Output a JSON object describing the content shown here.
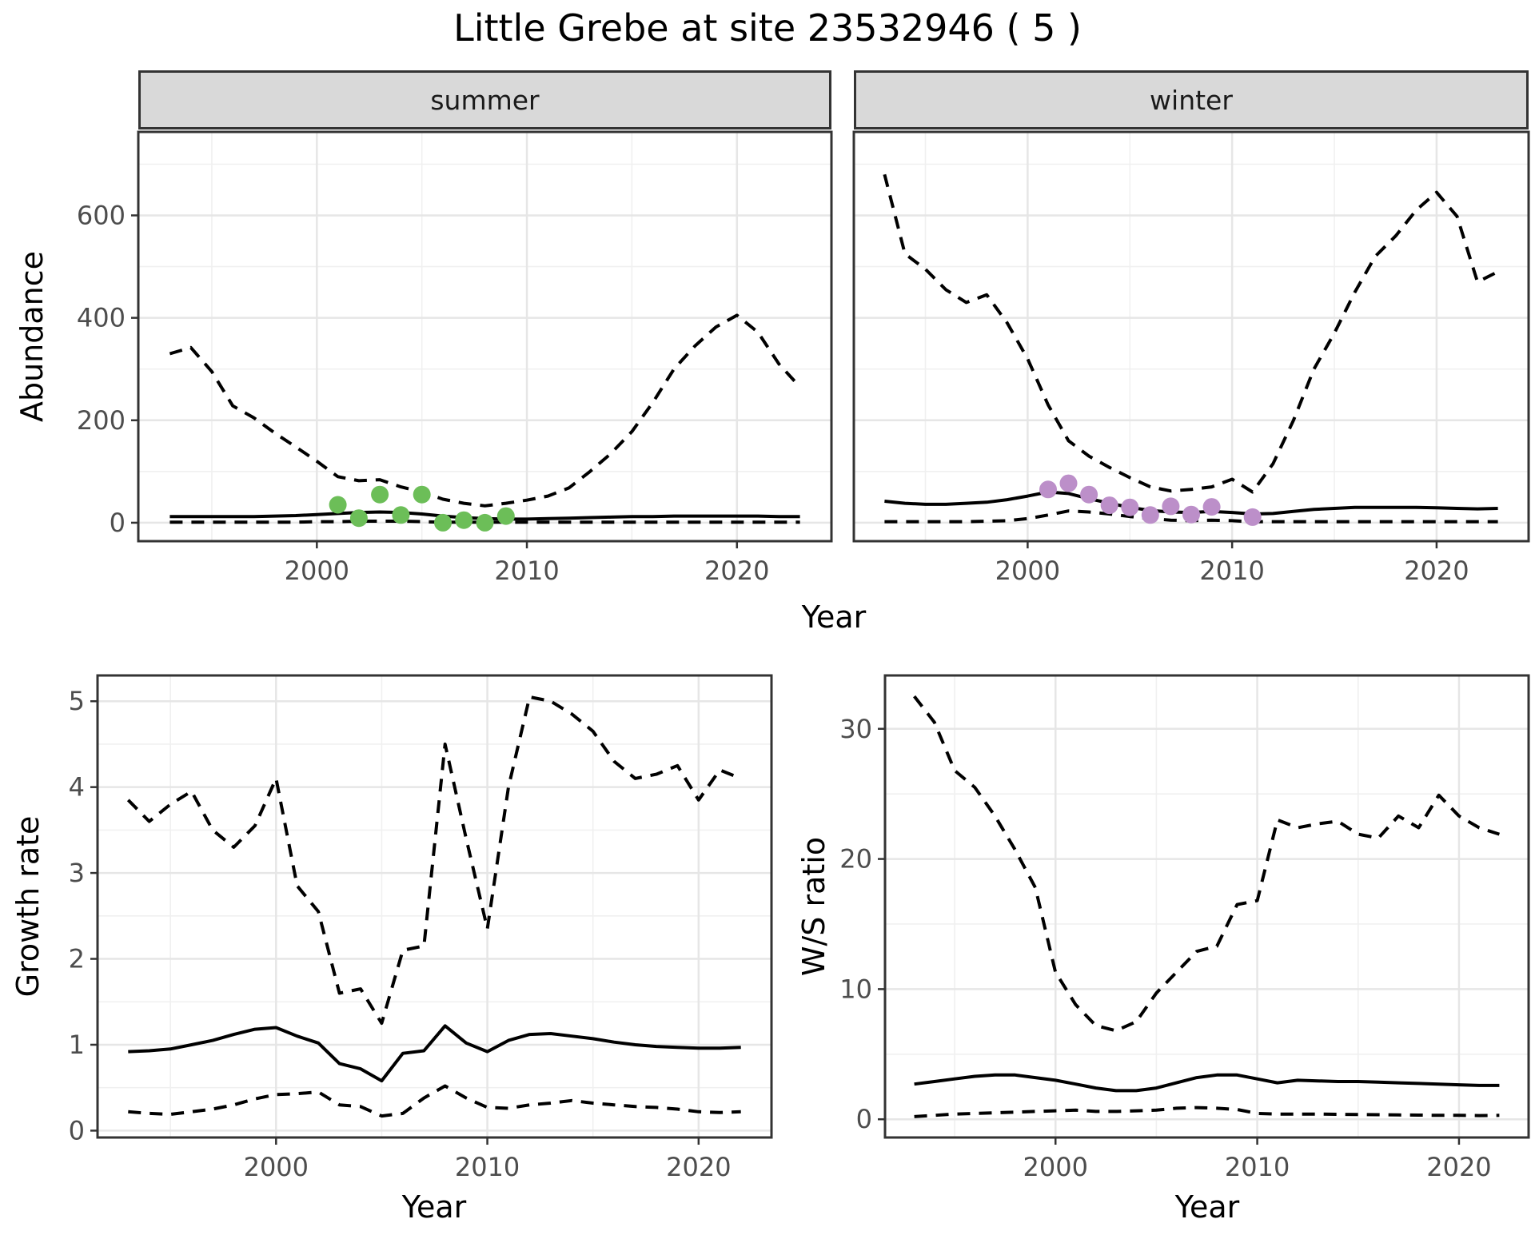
{
  "title": "Little Grebe at site 23532946 ( 5 )",
  "facets": [
    {
      "label": "summer"
    },
    {
      "label": "winter"
    }
  ],
  "axes": {
    "abundance_label": "Abundance",
    "growth_label": "Growth rate",
    "ws_label": "W/S ratio",
    "year_label": "Year"
  },
  "colors": {
    "summer_point": "#6CBE58",
    "winter_point": "#BC8FC9",
    "line": "#000000",
    "strip_bg": "#D9D9D9",
    "panel_bg": "#FFFFFF",
    "grid_major": "#E6E6E6",
    "grid_minor": "#F0F0F0",
    "tick_text": "#4D4D4D",
    "border": "#333333"
  },
  "chart_data": [
    {
      "id": "summer_abundance",
      "type": "line",
      "title": "summer",
      "xlabel": "Year",
      "ylabel": "Abundance",
      "xlim": [
        1991.5,
        2024.5
      ],
      "ylim": [
        -36,
        763
      ],
      "xticks": [
        2000,
        2010,
        2020
      ],
      "yticks": [
        0,
        200,
        400,
        600
      ],
      "grid": true,
      "legend": "none",
      "x": [
        1993,
        1994,
        1995,
        1996,
        1997,
        1998,
        1999,
        2000,
        2001,
        2002,
        2003,
        2004,
        2005,
        2006,
        2007,
        2008,
        2009,
        2010,
        2011,
        2012,
        2013,
        2014,
        2015,
        2016,
        2017,
        2018,
        2019,
        2020,
        2021,
        2022,
        2023
      ],
      "series": [
        {
          "name": "upper_95ci",
          "style": "dashed",
          "values": [
            330,
            342,
            295,
            228,
            205,
            175,
            148,
            120,
            90,
            82,
            84,
            70,
            60,
            46,
            38,
            33,
            38,
            44,
            52,
            68,
            100,
            135,
            178,
            235,
            300,
            345,
            382,
            405,
            372,
            310,
            265
          ]
        },
        {
          "name": "median",
          "style": "solid",
          "values": [
            12,
            12,
            12,
            12,
            12,
            13,
            14,
            16,
            18,
            20,
            21,
            20,
            17,
            13,
            10,
            8,
            7,
            7,
            8,
            9,
            10,
            11,
            12,
            12,
            13,
            13,
            13,
            13,
            13,
            12,
            12
          ]
        },
        {
          "name": "lower_95ci",
          "style": "dashed",
          "values": [
            1,
            1,
            1,
            1,
            1,
            1,
            1,
            2,
            2,
            3,
            3,
            3,
            2,
            1,
            1,
            1,
            1,
            1,
            1,
            1,
            1,
            1,
            1,
            1,
            1,
            1,
            1,
            1,
            1,
            1,
            1
          ]
        }
      ],
      "observed_points": {
        "name": "observed_counts",
        "color_key": "summer_point",
        "x": [
          2001,
          2002,
          2003,
          2004,
          2005,
          2006,
          2007,
          2008,
          2009
        ],
        "values": [
          35,
          9,
          55,
          15,
          55,
          0,
          5,
          0,
          13
        ]
      }
    },
    {
      "id": "winter_abundance",
      "type": "line",
      "title": "winter",
      "xlabel": "Year",
      "ylabel": "Abundance",
      "xlim": [
        1991.5,
        2024.5
      ],
      "ylim": [
        -36,
        763
      ],
      "xticks": [
        2000,
        2010,
        2020
      ],
      "yticks": [
        0,
        200,
        400,
        600
      ],
      "grid": true,
      "legend": "none",
      "x": [
        1993,
        1994,
        1995,
        1996,
        1997,
        1998,
        1999,
        2000,
        2001,
        2002,
        2003,
        2004,
        2005,
        2006,
        2007,
        2008,
        2009,
        2010,
        2011,
        2012,
        2013,
        2014,
        2015,
        2016,
        2017,
        2018,
        2019,
        2020,
        2021,
        2022,
        2023
      ],
      "series": [
        {
          "name": "upper_95ci",
          "style": "dashed",
          "values": [
            680,
            525,
            495,
            455,
            430,
            445,
            390,
            320,
            230,
            160,
            130,
            108,
            88,
            70,
            62,
            65,
            70,
            85,
            60,
            115,
            200,
            300,
            370,
            450,
            520,
            560,
            610,
            645,
            598,
            470,
            490
          ]
        },
        {
          "name": "median",
          "style": "solid",
          "values": [
            42,
            38,
            36,
            36,
            38,
            40,
            45,
            52,
            60,
            57,
            47,
            38,
            30,
            24,
            21,
            20,
            22,
            20,
            17,
            18,
            22,
            26,
            28,
            30,
            30,
            30,
            30,
            29,
            28,
            27,
            28
          ]
        },
        {
          "name": "lower_95ci",
          "style": "dashed",
          "values": [
            2,
            2,
            2,
            2,
            2,
            3,
            4,
            8,
            15,
            23,
            21,
            17,
            12,
            8,
            5,
            4,
            5,
            4,
            2,
            2,
            2,
            2,
            2,
            2,
            2,
            2,
            2,
            2,
            2,
            2,
            2
          ]
        }
      ],
      "observed_points": {
        "name": "observed_counts",
        "color_key": "winter_point",
        "x": [
          2001,
          2002,
          2003,
          2004,
          2005,
          2006,
          2007,
          2008,
          2009,
          2011
        ],
        "values": [
          65,
          77,
          55,
          34,
          30,
          15,
          32,
          16,
          31,
          11
        ]
      }
    },
    {
      "id": "growth_rate",
      "type": "line",
      "title": "",
      "xlabel": "Year",
      "ylabel": "Growth rate",
      "xlim": [
        1991.55,
        2023.45
      ],
      "ylim": [
        -0.08,
        5.3
      ],
      "xticks": [
        2000,
        2010,
        2020
      ],
      "yticks": [
        0,
        1,
        2,
        3,
        4,
        5
      ],
      "grid": true,
      "legend": "none",
      "x": [
        1993,
        1994,
        1995,
        1996,
        1997,
        1998,
        1999,
        2000,
        2001,
        2002,
        2003,
        2004,
        2005,
        2006,
        2007,
        2008,
        2009,
        2010,
        2011,
        2012,
        2013,
        2014,
        2015,
        2016,
        2017,
        2018,
        2019,
        2020,
        2021,
        2022
      ],
      "series": [
        {
          "name": "upper_95ci",
          "style": "dashed",
          "values": [
            3.85,
            3.6,
            3.8,
            3.95,
            3.5,
            3.3,
            3.55,
            4.1,
            2.85,
            2.55,
            1.6,
            1.65,
            1.25,
            2.1,
            2.15,
            4.5,
            3.4,
            2.35,
            4.0,
            5.05,
            5.0,
            4.85,
            4.65,
            4.3,
            4.1,
            4.15,
            4.25,
            3.85,
            4.2,
            4.1
          ]
        },
        {
          "name": "median",
          "style": "solid",
          "values": [
            0.92,
            0.93,
            0.95,
            1.0,
            1.05,
            1.12,
            1.18,
            1.2,
            1.1,
            1.02,
            0.78,
            0.72,
            0.58,
            0.9,
            0.93,
            1.22,
            1.02,
            0.92,
            1.05,
            1.12,
            1.13,
            1.1,
            1.07,
            1.03,
            1.0,
            0.98,
            0.97,
            0.96,
            0.96,
            0.97
          ]
        },
        {
          "name": "lower_95ci",
          "style": "dashed",
          "values": [
            0.22,
            0.2,
            0.19,
            0.22,
            0.25,
            0.3,
            0.37,
            0.42,
            0.43,
            0.45,
            0.3,
            0.28,
            0.17,
            0.2,
            0.38,
            0.52,
            0.38,
            0.27,
            0.26,
            0.3,
            0.32,
            0.35,
            0.32,
            0.3,
            0.28,
            0.27,
            0.25,
            0.22,
            0.21,
            0.22
          ]
        }
      ]
    },
    {
      "id": "ws_ratio",
      "type": "line",
      "title": "",
      "xlabel": "Year",
      "ylabel": "W/S ratio",
      "xlim": [
        1991.55,
        2023.45
      ],
      "ylim": [
        -1.4,
        34.1
      ],
      "xticks": [
        2000,
        2010,
        2020
      ],
      "yticks": [
        0,
        10,
        20,
        30
      ],
      "grid": true,
      "legend": "none",
      "x": [
        1993,
        1994,
        1995,
        1996,
        1997,
        1998,
        1999,
        2000,
        2001,
        2002,
        2003,
        2004,
        2005,
        2006,
        2007,
        2008,
        2009,
        2010,
        2011,
        2012,
        2013,
        2014,
        2015,
        2016,
        2017,
        2018,
        2019,
        2020,
        2021,
        2022
      ],
      "series": [
        {
          "name": "upper_95ci",
          "style": "dashed",
          "values": [
            32.5,
            30.5,
            26.8,
            25.5,
            23.3,
            20.7,
            17.8,
            11.3,
            8.8,
            7.2,
            6.8,
            7.5,
            9.7,
            11.3,
            12.9,
            13.3,
            16.5,
            16.8,
            23.0,
            22.4,
            22.7,
            22.9,
            21.9,
            21.6,
            23.3,
            22.4,
            24.9,
            23.3,
            22.4,
            21.9
          ]
        },
        {
          "name": "median",
          "style": "solid",
          "values": [
            2.7,
            2.9,
            3.1,
            3.3,
            3.4,
            3.4,
            3.2,
            3.0,
            2.7,
            2.4,
            2.2,
            2.2,
            2.4,
            2.8,
            3.2,
            3.4,
            3.4,
            3.1,
            2.8,
            3.0,
            2.95,
            2.9,
            2.9,
            2.85,
            2.8,
            2.75,
            2.7,
            2.65,
            2.6,
            2.6
          ]
        },
        {
          "name": "lower_95ci",
          "style": "dashed",
          "values": [
            0.2,
            0.3,
            0.4,
            0.45,
            0.5,
            0.55,
            0.6,
            0.65,
            0.7,
            0.6,
            0.6,
            0.65,
            0.7,
            0.85,
            0.9,
            0.85,
            0.75,
            0.45,
            0.4,
            0.4,
            0.4,
            0.38,
            0.36,
            0.35,
            0.33,
            0.32,
            0.3,
            0.3,
            0.28,
            0.3
          ]
        }
      ]
    }
  ]
}
